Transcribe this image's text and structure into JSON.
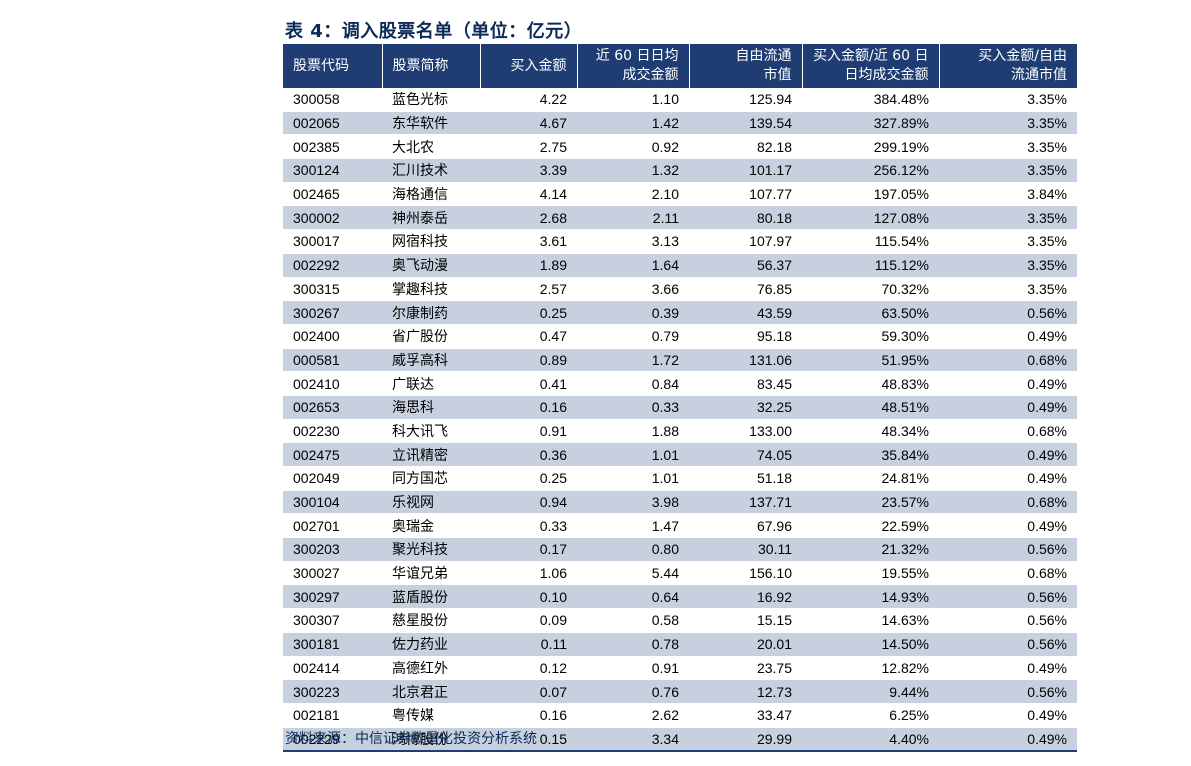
{
  "title": "表 4：调入股票名单（单位：亿元）",
  "headers": {
    "code": "股票代码",
    "name": "股票简称",
    "buy_amount": "买入金额",
    "avg60_line1": "近 60 日日均",
    "avg60_line2": "成交金额",
    "float_line1": "自由流通",
    "float_line2": "市值",
    "ratio1_line1": "买入金额/近 60 日",
    "ratio1_line2": "日均成交金额",
    "ratio2_line1": "买入金额/自由",
    "ratio2_line2": "流通市值"
  },
  "rows": [
    {
      "code": "300058",
      "name": "蓝色光标",
      "buy": "4.22",
      "avg": "1.10",
      "cap": "125.94",
      "r1": "384.48%",
      "r2": "3.35%"
    },
    {
      "code": "002065",
      "name": "东华软件",
      "buy": "4.67",
      "avg": "1.42",
      "cap": "139.54",
      "r1": "327.89%",
      "r2": "3.35%"
    },
    {
      "code": "002385",
      "name": "大北农",
      "buy": "2.75",
      "avg": "0.92",
      "cap": "82.18",
      "r1": "299.19%",
      "r2": "3.35%"
    },
    {
      "code": "300124",
      "name": "汇川技术",
      "buy": "3.39",
      "avg": "1.32",
      "cap": "101.17",
      "r1": "256.12%",
      "r2": "3.35%"
    },
    {
      "code": "002465",
      "name": "海格通信",
      "buy": "4.14",
      "avg": "2.10",
      "cap": "107.77",
      "r1": "197.05%",
      "r2": "3.84%"
    },
    {
      "code": "300002",
      "name": "神州泰岳",
      "buy": "2.68",
      "avg": "2.11",
      "cap": "80.18",
      "r1": "127.08%",
      "r2": "3.35%"
    },
    {
      "code": "300017",
      "name": "网宿科技",
      "buy": "3.61",
      "avg": "3.13",
      "cap": "107.97",
      "r1": "115.54%",
      "r2": "3.35%"
    },
    {
      "code": "002292",
      "name": "奥飞动漫",
      "buy": "1.89",
      "avg": "1.64",
      "cap": "56.37",
      "r1": "115.12%",
      "r2": "3.35%"
    },
    {
      "code": "300315",
      "name": "掌趣科技",
      "buy": "2.57",
      "avg": "3.66",
      "cap": "76.85",
      "r1": "70.32%",
      "r2": "3.35%"
    },
    {
      "code": "300267",
      "name": "尔康制药",
      "buy": "0.25",
      "avg": "0.39",
      "cap": "43.59",
      "r1": "63.50%",
      "r2": "0.56%"
    },
    {
      "code": "002400",
      "name": "省广股份",
      "buy": "0.47",
      "avg": "0.79",
      "cap": "95.18",
      "r1": "59.30%",
      "r2": "0.49%"
    },
    {
      "code": "000581",
      "name": "威孚高科",
      "buy": "0.89",
      "avg": "1.72",
      "cap": "131.06",
      "r1": "51.95%",
      "r2": "0.68%"
    },
    {
      "code": "002410",
      "name": "广联达",
      "buy": "0.41",
      "avg": "0.84",
      "cap": "83.45",
      "r1": "48.83%",
      "r2": "0.49%"
    },
    {
      "code": "002653",
      "name": "海思科",
      "buy": "0.16",
      "avg": "0.33",
      "cap": "32.25",
      "r1": "48.51%",
      "r2": "0.49%"
    },
    {
      "code": "002230",
      "name": "科大讯飞",
      "buy": "0.91",
      "avg": "1.88",
      "cap": "133.00",
      "r1": "48.34%",
      "r2": "0.68%"
    },
    {
      "code": "002475",
      "name": "立讯精密",
      "buy": "0.36",
      "avg": "1.01",
      "cap": "74.05",
      "r1": "35.84%",
      "r2": "0.49%"
    },
    {
      "code": "002049",
      "name": "同方国芯",
      "buy": "0.25",
      "avg": "1.01",
      "cap": "51.18",
      "r1": "24.81%",
      "r2": "0.49%"
    },
    {
      "code": "300104",
      "name": "乐视网",
      "buy": "0.94",
      "avg": "3.98",
      "cap": "137.71",
      "r1": "23.57%",
      "r2": "0.68%"
    },
    {
      "code": "002701",
      "name": "奥瑞金",
      "buy": "0.33",
      "avg": "1.47",
      "cap": "67.96",
      "r1": "22.59%",
      "r2": "0.49%"
    },
    {
      "code": "300203",
      "name": "聚光科技",
      "buy": "0.17",
      "avg": "0.80",
      "cap": "30.11",
      "r1": "21.32%",
      "r2": "0.56%"
    },
    {
      "code": "300027",
      "name": "华谊兄弟",
      "buy": "1.06",
      "avg": "5.44",
      "cap": "156.10",
      "r1": "19.55%",
      "r2": "0.68%"
    },
    {
      "code": "300297",
      "name": "蓝盾股份",
      "buy": "0.10",
      "avg": "0.64",
      "cap": "16.92",
      "r1": "14.93%",
      "r2": "0.56%"
    },
    {
      "code": "300307",
      "name": "慈星股份",
      "buy": "0.09",
      "avg": "0.58",
      "cap": "15.15",
      "r1": "14.63%",
      "r2": "0.56%"
    },
    {
      "code": "300181",
      "name": "佐力药业",
      "buy": "0.11",
      "avg": "0.78",
      "cap": "20.01",
      "r1": "14.50%",
      "r2": "0.56%"
    },
    {
      "code": "002414",
      "name": "高德红外",
      "buy": "0.12",
      "avg": "0.91",
      "cap": "23.75",
      "r1": "12.82%",
      "r2": "0.49%"
    },
    {
      "code": "300223",
      "name": "北京君正",
      "buy": "0.07",
      "avg": "0.76",
      "cap": "12.73",
      "r1": "9.44%",
      "r2": "0.56%"
    },
    {
      "code": "002181",
      "name": "粤传媒",
      "buy": "0.16",
      "avg": "2.62",
      "cap": "33.47",
      "r1": "6.25%",
      "r2": "0.49%"
    },
    {
      "code": "002229",
      "name": "鸿博股份",
      "buy": "0.15",
      "avg": "3.34",
      "cap": "29.99",
      "r1": "4.40%",
      "r2": "0.49%"
    }
  ],
  "source": "资料来源：中信证券数量化投资分析系统",
  "colors": {
    "header_bg": "#1f3d73",
    "stripe": "#c7d0de",
    "title": "#0b2a57"
  }
}
